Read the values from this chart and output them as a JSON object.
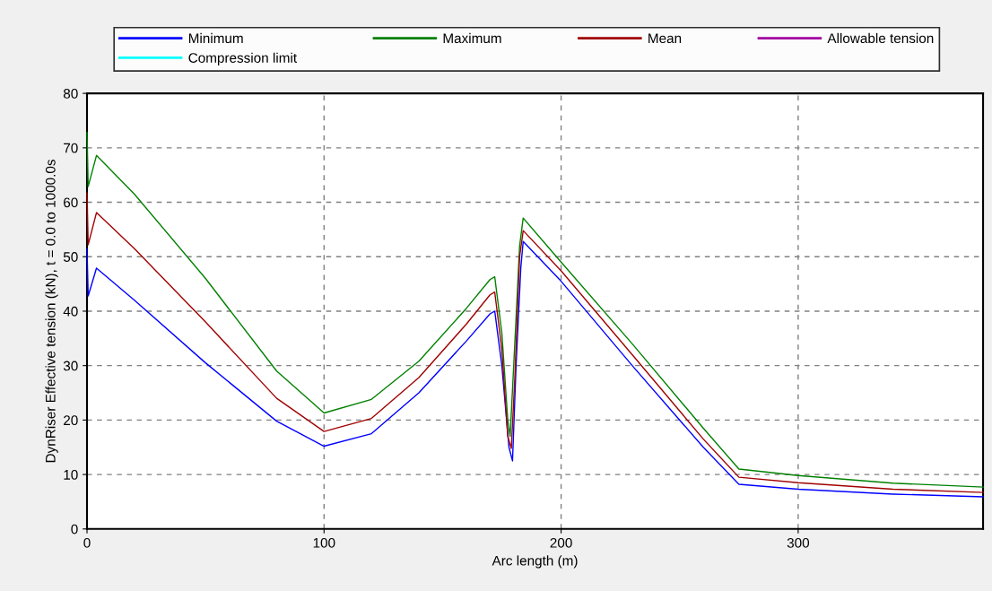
{
  "chart_data": {
    "type": "line",
    "xlabel": "Arc length (m)",
    "ylabel": "DynRiser Effective tension (kN), t = 0.0 to 1000.0s",
    "xlim": [
      0,
      378
    ],
    "ylim": [
      0,
      80
    ],
    "xticks": [
      0,
      100,
      200,
      300
    ],
    "yticks": [
      0,
      10,
      20,
      30,
      40,
      50,
      60,
      70,
      80
    ],
    "grid": true,
    "legend": "top",
    "line_style": "solid",
    "marker": "none",
    "series": [
      {
        "name": "Minimum",
        "color": "#0000ff",
        "x": [
          0,
          0.5,
          4,
          20,
          50,
          80,
          100,
          120,
          140,
          160,
          170,
          172,
          175,
          178,
          179.5,
          181,
          183,
          184,
          200,
          230,
          260,
          275,
          300,
          340,
          378
        ],
        "values": [
          51.4,
          42.8,
          47.9,
          42,
          30.5,
          19.8,
          15.2,
          17.5,
          25,
          34.5,
          39.5,
          40,
          30,
          15,
          12.5,
          30,
          48,
          52.8,
          45.5,
          30,
          15,
          8.2,
          7.3,
          6.4,
          5.9
        ]
      },
      {
        "name": "Maximum",
        "color": "#008000",
        "x": [
          0,
          0.5,
          4,
          20,
          50,
          80,
          100,
          120,
          140,
          160,
          170,
          172,
          175,
          177.5,
          178.5,
          180,
          182.5,
          184,
          200,
          230,
          260,
          275,
          300,
          340,
          378
        ],
        "values": [
          72.8,
          62.9,
          68.6,
          61.5,
          46,
          29,
          21.3,
          23.8,
          30.8,
          40.5,
          45.8,
          46.3,
          36,
          20,
          17,
          30,
          52,
          57.1,
          49,
          34,
          18.5,
          11,
          9.8,
          8.4,
          7.7
        ]
      },
      {
        "name": "Mean",
        "color": "#a00000",
        "x": [
          0,
          0.5,
          4,
          20,
          50,
          80,
          100,
          120,
          140,
          160,
          170,
          172,
          175,
          177.5,
          179,
          180.5,
          182.5,
          184,
          200,
          230,
          260,
          275,
          300,
          340,
          378
        ],
        "values": [
          61.7,
          52.2,
          58.1,
          51.5,
          38,
          24,
          17.9,
          20.3,
          27.8,
          37.6,
          43,
          43.5,
          33,
          17,
          14.8,
          28,
          50,
          54.8,
          47.4,
          32,
          16.5,
          9.5,
          8.5,
          7.3,
          6.7
        ]
      },
      {
        "name": "Allowable tension",
        "color": "#a000a0"
      },
      {
        "name": "Compression limit",
        "color": "#00ffff"
      }
    ]
  }
}
